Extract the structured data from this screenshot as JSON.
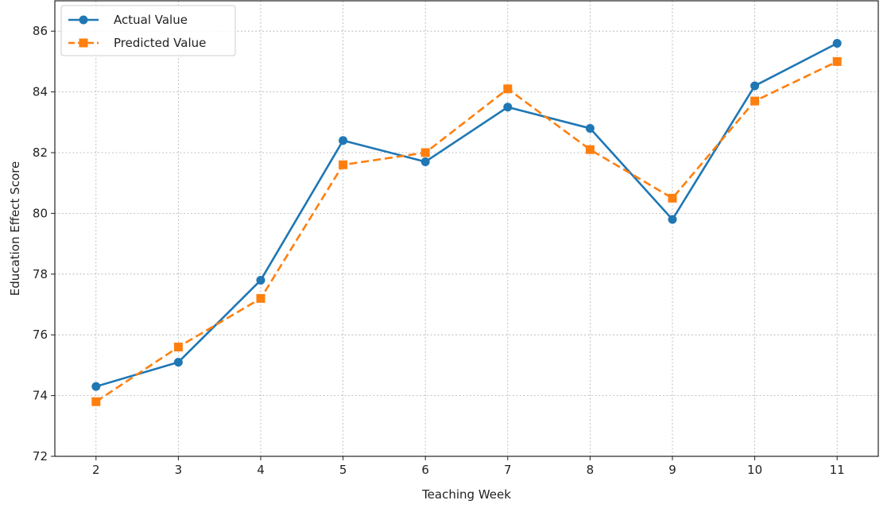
{
  "chart_data": {
    "type": "line",
    "title": "",
    "xlabel": "Teaching Week",
    "ylabel": "Education Effect Score",
    "x": [
      2,
      3,
      4,
      5,
      6,
      7,
      8,
      9,
      10,
      11
    ],
    "xlim": [
      1.5,
      11.5
    ],
    "ylim": [
      72,
      87
    ],
    "yticks": [
      72,
      74,
      76,
      78,
      80,
      82,
      84,
      86
    ],
    "grid": true,
    "legend_position": "top-left",
    "series": [
      {
        "name": "Actual Value",
        "values": [
          74.3,
          75.1,
          77.8,
          82.4,
          81.7,
          83.5,
          82.8,
          79.8,
          84.2,
          85.6
        ],
        "color": "#1f77b4",
        "line_style": "solid",
        "marker": "circle"
      },
      {
        "name": "Predicted Value",
        "values": [
          73.8,
          75.6,
          77.2,
          81.6,
          82.0,
          84.1,
          82.1,
          80.5,
          83.7,
          85.0
        ],
        "color": "#ff7f0e",
        "line_style": "dashed",
        "marker": "square"
      }
    ]
  }
}
